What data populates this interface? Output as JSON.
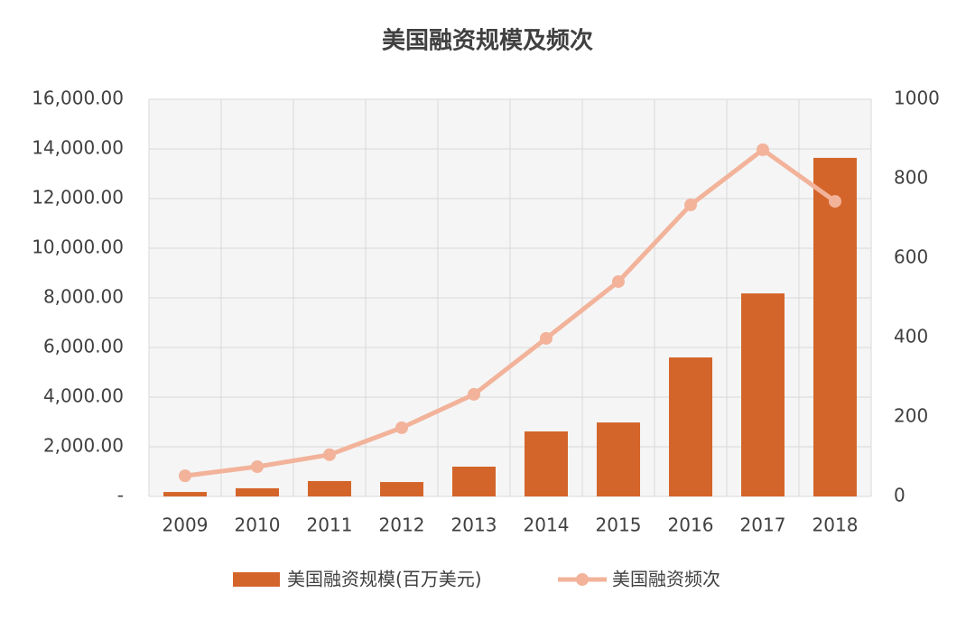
{
  "chart_data": {
    "type": "combo",
    "title": "美国融资规模及频次",
    "categories": [
      "2009",
      "2010",
      "2011",
      "2012",
      "2013",
      "2014",
      "2015",
      "2016",
      "2017",
      "2018"
    ],
    "series": [
      {
        "name": "美国融资规模(百万美元)",
        "type": "bar",
        "color": "#d4652a",
        "values": [
          180,
          330,
          620,
          580,
          1200,
          2620,
          2980,
          5600,
          8180,
          13640
        ]
      },
      {
        "name": "美国融资频次",
        "type": "line",
        "color": "#f2b39a",
        "axis": "y2",
        "values": [
          52,
          75,
          105,
          173,
          257,
          398,
          541,
          734,
          873,
          743
        ]
      }
    ],
    "ylim": [
      0,
      16000
    ],
    "yticks": [
      {
        "value": 0,
        "label": "-"
      },
      {
        "value": 2000,
        "label": "2,000.00"
      },
      {
        "value": 4000,
        "label": "4,000.00"
      },
      {
        "value": 6000,
        "label": "6,000.00"
      },
      {
        "value": 8000,
        "label": "8,000.00"
      },
      {
        "value": 10000,
        "label": "10,000.00"
      },
      {
        "value": 12000,
        "label": "12,000.00"
      },
      {
        "value": 14000,
        "label": "14,000.00"
      },
      {
        "value": 16000,
        "label": "16,000.00"
      }
    ],
    "y2lim": [
      0,
      1000
    ],
    "y2ticks": [
      0,
      200,
      400,
      600,
      800,
      1000
    ],
    "grid": true
  }
}
